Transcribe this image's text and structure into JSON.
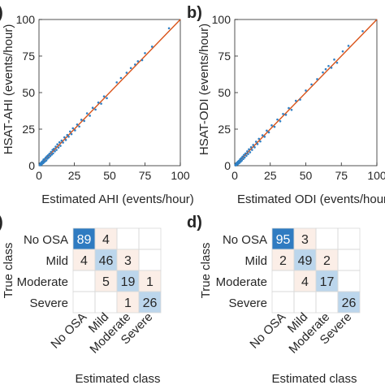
{
  "figure": {
    "panels": [
      "a)",
      "b)",
      "c)",
      "d)"
    ]
  },
  "colors": {
    "point": "#2e7fc4",
    "fit_line": "#d95319",
    "axis": "#262626",
    "cm_strong": "#2f7bc1",
    "cm_medium": "#bcd6ec",
    "cm_light": "#fbeee7",
    "cm_strong_text": "#ffffff",
    "cm_text": "#262626"
  },
  "chart_data": [
    {
      "type": "scatter",
      "panel": "a)",
      "xlabel": "Estimated AHI (events/hour)",
      "ylabel": "HSAT-AHI (events/hour)",
      "xlim": [
        0,
        100
      ],
      "ylim": [
        0,
        100
      ],
      "xticks": [
        "0",
        "25",
        "50",
        "75",
        "100"
      ],
      "yticks": [
        "0",
        "25",
        "50",
        "75",
        "100"
      ],
      "fit_line": [
        [
          0,
          0
        ],
        [
          100,
          100
        ]
      ],
      "points": [
        [
          0.5,
          0.6
        ],
        [
          0.8,
          0.3
        ],
        [
          1,
          1.6
        ],
        [
          1.2,
          0.5
        ],
        [
          1.5,
          2
        ],
        [
          1.8,
          0.8
        ],
        [
          2,
          2.6
        ],
        [
          2.3,
          1.4
        ],
        [
          2.6,
          3.1
        ],
        [
          3,
          1.8
        ],
        [
          3.2,
          4.2
        ],
        [
          3.6,
          2.4
        ],
        [
          4,
          4.6
        ],
        [
          4.3,
          3
        ],
        [
          4.8,
          5.6
        ],
        [
          5.2,
          3.6
        ],
        [
          5.6,
          6.4
        ],
        [
          6,
          4.8
        ],
        [
          6.5,
          7.2
        ],
        [
          7,
          5.6
        ],
        [
          7.4,
          8.2
        ],
        [
          8,
          6.6
        ],
        [
          8.5,
          9.4
        ],
        [
          9,
          7.6
        ],
        [
          9.6,
          10.8
        ],
        [
          10,
          8.4
        ],
        [
          10.6,
          11.6
        ],
        [
          11.2,
          9.8
        ],
        [
          11.8,
          13
        ],
        [
          12.4,
          10.8
        ],
        [
          13,
          14.6
        ],
        [
          13.8,
          12.4
        ],
        [
          14.5,
          16
        ],
        [
          15.2,
          13.6
        ],
        [
          16,
          17.2
        ],
        [
          17,
          15.8
        ],
        [
          18,
          19.4
        ],
        [
          19,
          17.6
        ],
        [
          20,
          21
        ],
        [
          21,
          19.8
        ],
        [
          22,
          23.4
        ],
        [
          23,
          21.6
        ],
        [
          24,
          25.6
        ],
        [
          25.5,
          24.2
        ],
        [
          27,
          28.2
        ],
        [
          28.5,
          26.8
        ],
        [
          30,
          31.4
        ],
        [
          32,
          30.6
        ],
        [
          34,
          35.8
        ],
        [
          36,
          34.2
        ],
        [
          38,
          39.6
        ],
        [
          40,
          38.4
        ],
        [
          42,
          43.2
        ],
        [
          44,
          42.4
        ],
        [
          46,
          47.4
        ],
        [
          48,
          46.2
        ],
        [
          55,
          57
        ],
        [
          58,
          60
        ],
        [
          62,
          63.6
        ],
        [
          65,
          66.8
        ],
        [
          68,
          69.2
        ],
        [
          70,
          71.4
        ],
        [
          73,
          72.2
        ],
        [
          75,
          77
        ],
        [
          80,
          81.4
        ],
        [
          92,
          94
        ]
      ]
    },
    {
      "type": "scatter",
      "panel": "b)",
      "xlabel": "Estimated ODI (events/hour)",
      "ylabel": "HSAT-ODI (events/hour)",
      "xlim": [
        0,
        100
      ],
      "ylim": [
        0,
        100
      ],
      "xticks": [
        "0",
        "25",
        "50",
        "75",
        "100"
      ],
      "yticks": [
        "0",
        "25",
        "50",
        "75",
        "100"
      ],
      "fit_line": [
        [
          0,
          0
        ],
        [
          100,
          100
        ]
      ],
      "points": [
        [
          0.4,
          0.5
        ],
        [
          0.7,
          0.2
        ],
        [
          1,
          1.5
        ],
        [
          1.3,
          0.6
        ],
        [
          1.6,
          2.1
        ],
        [
          2,
          0.9
        ],
        [
          2.3,
          2.8
        ],
        [
          2.6,
          1.5
        ],
        [
          3,
          3.4
        ],
        [
          3.4,
          2
        ],
        [
          3.8,
          4.4
        ],
        [
          4.2,
          2.8
        ],
        [
          4.6,
          5.2
        ],
        [
          5,
          3.6
        ],
        [
          5.5,
          6.2
        ],
        [
          6,
          4.6
        ],
        [
          6.5,
          7.4
        ],
        [
          7,
          5.6
        ],
        [
          7.6,
          8.4
        ],
        [
          8.2,
          6.8
        ],
        [
          8.8,
          9.8
        ],
        [
          9.4,
          8
        ],
        [
          10,
          11.2
        ],
        [
          10.8,
          9.2
        ],
        [
          11.5,
          12.6
        ],
        [
          12.2,
          10.8
        ],
        [
          13,
          14.2
        ],
        [
          14,
          12.6
        ],
        [
          15,
          16.4
        ],
        [
          16,
          14.8
        ],
        [
          17,
          18.4
        ],
        [
          18,
          16.6
        ],
        [
          19.5,
          20.8
        ],
        [
          21,
          19.8
        ],
        [
          22.5,
          24
        ],
        [
          24,
          22.8
        ],
        [
          26,
          27.6
        ],
        [
          28,
          26.6
        ],
        [
          30,
          31.6
        ],
        [
          32,
          30.4
        ],
        [
          34,
          35.4
        ],
        [
          36,
          34.8
        ],
        [
          38,
          39.4
        ],
        [
          40,
          38.2
        ],
        [
          43,
          44.4
        ],
        [
          46,
          45.2
        ],
        [
          50,
          51.4
        ],
        [
          54,
          55.6
        ],
        [
          58,
          59.2
        ],
        [
          62,
          63.8
        ],
        [
          64,
          66
        ],
        [
          66,
          68.2
        ],
        [
          68,
          67
        ],
        [
          70,
          72.6
        ],
        [
          72,
          70.4
        ],
        [
          76,
          78.2
        ],
        [
          80,
          82
        ],
        [
          90,
          92
        ]
      ]
    },
    {
      "type": "heatmap",
      "panel": "c)",
      "xlabel": "Estimated class",
      "ylabel": "True class",
      "row_labels": [
        "No OSA",
        "Mild",
        "Moderate",
        "Severe"
      ],
      "col_labels": [
        "No OSA",
        "Mild",
        "Moderate",
        "Severe"
      ],
      "cells": [
        [
          "89",
          "4",
          "",
          ""
        ],
        [
          "4",
          "46",
          "3",
          ""
        ],
        [
          "",
          "5",
          "19",
          "1"
        ],
        [
          "",
          "",
          "1",
          "26"
        ]
      ]
    },
    {
      "type": "heatmap",
      "panel": "d)",
      "xlabel": "Estimated class",
      "ylabel": "True class",
      "row_labels": [
        "No OSA",
        "Mild",
        "Moderate",
        "Severe"
      ],
      "col_labels": [
        "No OSA",
        "Mild",
        "Moderate",
        "Severe"
      ],
      "cells": [
        [
          "95",
          "3",
          "",
          ""
        ],
        [
          "2",
          "49",
          "2",
          ""
        ],
        [
          "",
          "4",
          "17",
          ""
        ],
        [
          "",
          "",
          "",
          "26"
        ]
      ]
    }
  ]
}
